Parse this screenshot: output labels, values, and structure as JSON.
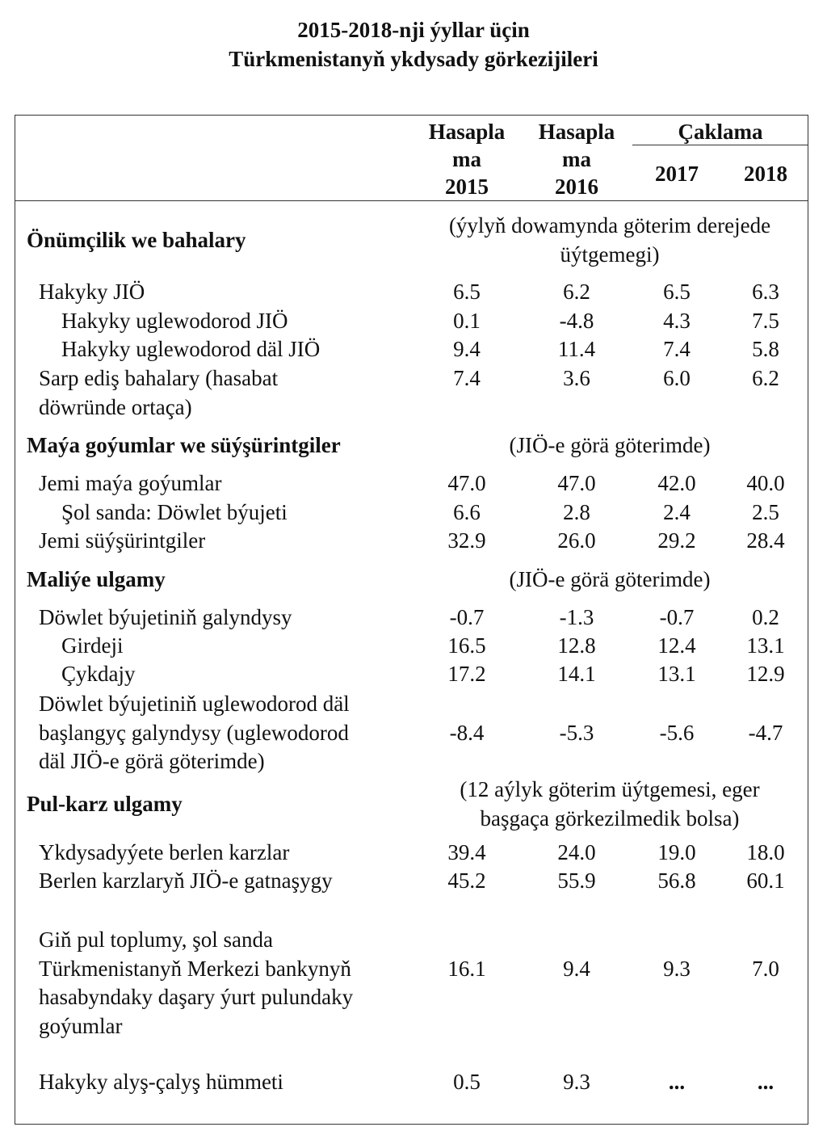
{
  "title": {
    "line1": "2015-2018-nji ýyllar üçin",
    "line2": "Türkmenistanyň ykdysady görkezijileri"
  },
  "header": {
    "col1": "Hasapla\nma\n2015",
    "col2": "Hasapla\nma\n2016",
    "forecast_group": "Çaklama",
    "col3": "2017",
    "col4": "2018"
  },
  "rows": [
    {
      "type": "section",
      "label": "Önümçilik we bahalary",
      "note": "(ýylyň dowamynda göterim derejede\nüýtgemegi)"
    },
    {
      "type": "data",
      "indent": 1,
      "label": "Hakyky JIÖ",
      "values": [
        "6.5",
        "6.2",
        "6.5",
        "6.3"
      ]
    },
    {
      "type": "data",
      "indent": 2,
      "label": "Hakyky uglewodorod JIÖ",
      "values": [
        "0.1",
        "-4.8",
        "4.3",
        "7.5"
      ]
    },
    {
      "type": "data",
      "indent": 2,
      "label": "Hakyky uglewodorod däl JIÖ",
      "values": [
        "9.4",
        "11.4",
        "7.4",
        "5.8"
      ]
    },
    {
      "type": "data",
      "indent": 1,
      "label": "Sarp ediş bahalary (hasabat\ndöwründe ortaça)",
      "values": [
        "7.4",
        "3.6",
        "6.0",
        "6.2"
      ]
    },
    {
      "type": "section",
      "label": "Maýa goýumlar we süýşürintgiler",
      "note": "(JIÖ-e görä göterimde)"
    },
    {
      "type": "data",
      "indent": 1,
      "label": "Jemi maýa goýumlar",
      "values": [
        "47.0",
        "47.0",
        "42.0",
        "40.0"
      ]
    },
    {
      "type": "data",
      "indent": 2,
      "label": "Şol sanda: Döwlet býujeti",
      "values": [
        "6.6",
        "2.8",
        "2.4",
        "2.5"
      ]
    },
    {
      "type": "data",
      "indent": 1,
      "label": "Jemi süýşürintgiler",
      "values": [
        "32.9",
        "26.0",
        "29.2",
        "28.4"
      ]
    },
    {
      "type": "section",
      "label": "Maliýe ulgamy",
      "note": "(JIÖ-e görä göterimde)"
    },
    {
      "type": "data",
      "indent": 1,
      "label": "Döwlet býujetiniň galyndysy",
      "values": [
        "-0.7",
        "-1.3",
        "-0.7",
        "0.2"
      ]
    },
    {
      "type": "data",
      "indent": 2,
      "label": "Girdeji",
      "values": [
        "16.5",
        "12.8",
        "12.4",
        "13.1"
      ]
    },
    {
      "type": "data",
      "indent": 2,
      "label": "Çykdajy",
      "values": [
        "17.2",
        "14.1",
        "13.1",
        "12.9"
      ]
    },
    {
      "type": "data",
      "indent": 1,
      "label": "Döwlet býujetiniň uglewodorod däl\nbaşlangyç galyndysy (uglewodorod\ndäl JIÖ-e görä göterimde)",
      "values": [
        "-8.4",
        "-5.3",
        "-5.6",
        "-4.7"
      ]
    },
    {
      "type": "section",
      "label": "Pul-karz ulgamy",
      "note": "(12 aýlyk göterim üýtgemesi, eger\nbaşgaça görkezilmedik bolsa)"
    },
    {
      "type": "data",
      "indent": 1,
      "label": "Ykdysadyýete berlen karzlar",
      "values": [
        "39.4",
        "24.0",
        "19.0",
        "18.0"
      ]
    },
    {
      "type": "data",
      "indent": 1,
      "label": "Berlen karzlaryň JIÖ-e gatnaşygy",
      "values": [
        "45.2",
        "55.9",
        "56.8",
        "60.1"
      ]
    },
    {
      "type": "data",
      "indent": 1,
      "label": "Giň pul toplumy, şol sanda\nTürkmenistanyň Merkezi bankynyň\nhasabyndaky daşary ýurt pulundaky\ngoýumlar",
      "values": [
        "16.1",
        "9.4",
        "9.3",
        "7.0"
      ]
    },
    {
      "type": "data",
      "indent": 1,
      "label": "Hakyky alyş-çalyş hümmeti",
      "values": [
        "0.5",
        "9.3",
        "...",
        "..."
      ]
    }
  ]
}
